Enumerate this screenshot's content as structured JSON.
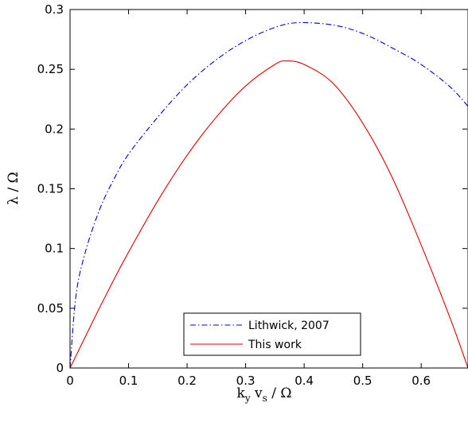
{
  "chart_data": {
    "type": "line",
    "xlabel": {
      "k": "k",
      "y_sub": "y",
      "v": " v",
      "s_sub": "s",
      "tail": " / Ω"
    },
    "ylabel": "λ / Ω",
    "xlim": [
      0,
      0.68
    ],
    "ylim": [
      0,
      0.3
    ],
    "x_ticks": [
      {
        "value": 0,
        "label": "0"
      },
      {
        "value": 0.1,
        "label": "0.1"
      },
      {
        "value": 0.2,
        "label": "0.2"
      },
      {
        "value": 0.3,
        "label": "0.3"
      },
      {
        "value": 0.4,
        "label": "0.4"
      },
      {
        "value": 0.5,
        "label": "0.5"
      },
      {
        "value": 0.6,
        "label": "0.6"
      }
    ],
    "y_ticks": [
      {
        "value": 0,
        "label": "0"
      },
      {
        "value": 0.05,
        "label": "0.05"
      },
      {
        "value": 0.1,
        "label": "0.1"
      },
      {
        "value": 0.15,
        "label": "0.15"
      },
      {
        "value": 0.2,
        "label": "0.2"
      },
      {
        "value": 0.25,
        "label": "0.25"
      },
      {
        "value": 0.3,
        "label": "0.3"
      }
    ],
    "grid": false,
    "legend_position": "bottom-center",
    "series": [
      {
        "name": "Lithwick, 2007",
        "color": "#0000cc",
        "style": "dash-dot",
        "x": [
          0,
          0.01,
          0.025,
          0.05,
          0.075,
          0.1,
          0.15,
          0.2,
          0.25,
          0.3,
          0.35,
          0.39,
          0.45,
          0.5,
          0.55,
          0.6,
          0.65,
          0.68
        ],
        "y": [
          0,
          0.06,
          0.095,
          0.132,
          0.158,
          0.179,
          0.21,
          0.237,
          0.258,
          0.274,
          0.285,
          0.289,
          0.287,
          0.28,
          0.268,
          0.254,
          0.235,
          0.219
        ]
      },
      {
        "name": "This work",
        "color": "#dd0000",
        "style": "solid",
        "x": [
          0,
          0.025,
          0.05,
          0.075,
          0.1,
          0.15,
          0.2,
          0.25,
          0.3,
          0.35,
          0.37,
          0.4,
          0.45,
          0.5,
          0.55,
          0.6,
          0.65,
          0.68
        ],
        "y": [
          0,
          0.025,
          0.05,
          0.074,
          0.097,
          0.14,
          0.178,
          0.21,
          0.236,
          0.254,
          0.257,
          0.254,
          0.238,
          0.205,
          0.16,
          0.103,
          0.041,
          0
        ]
      }
    ]
  }
}
